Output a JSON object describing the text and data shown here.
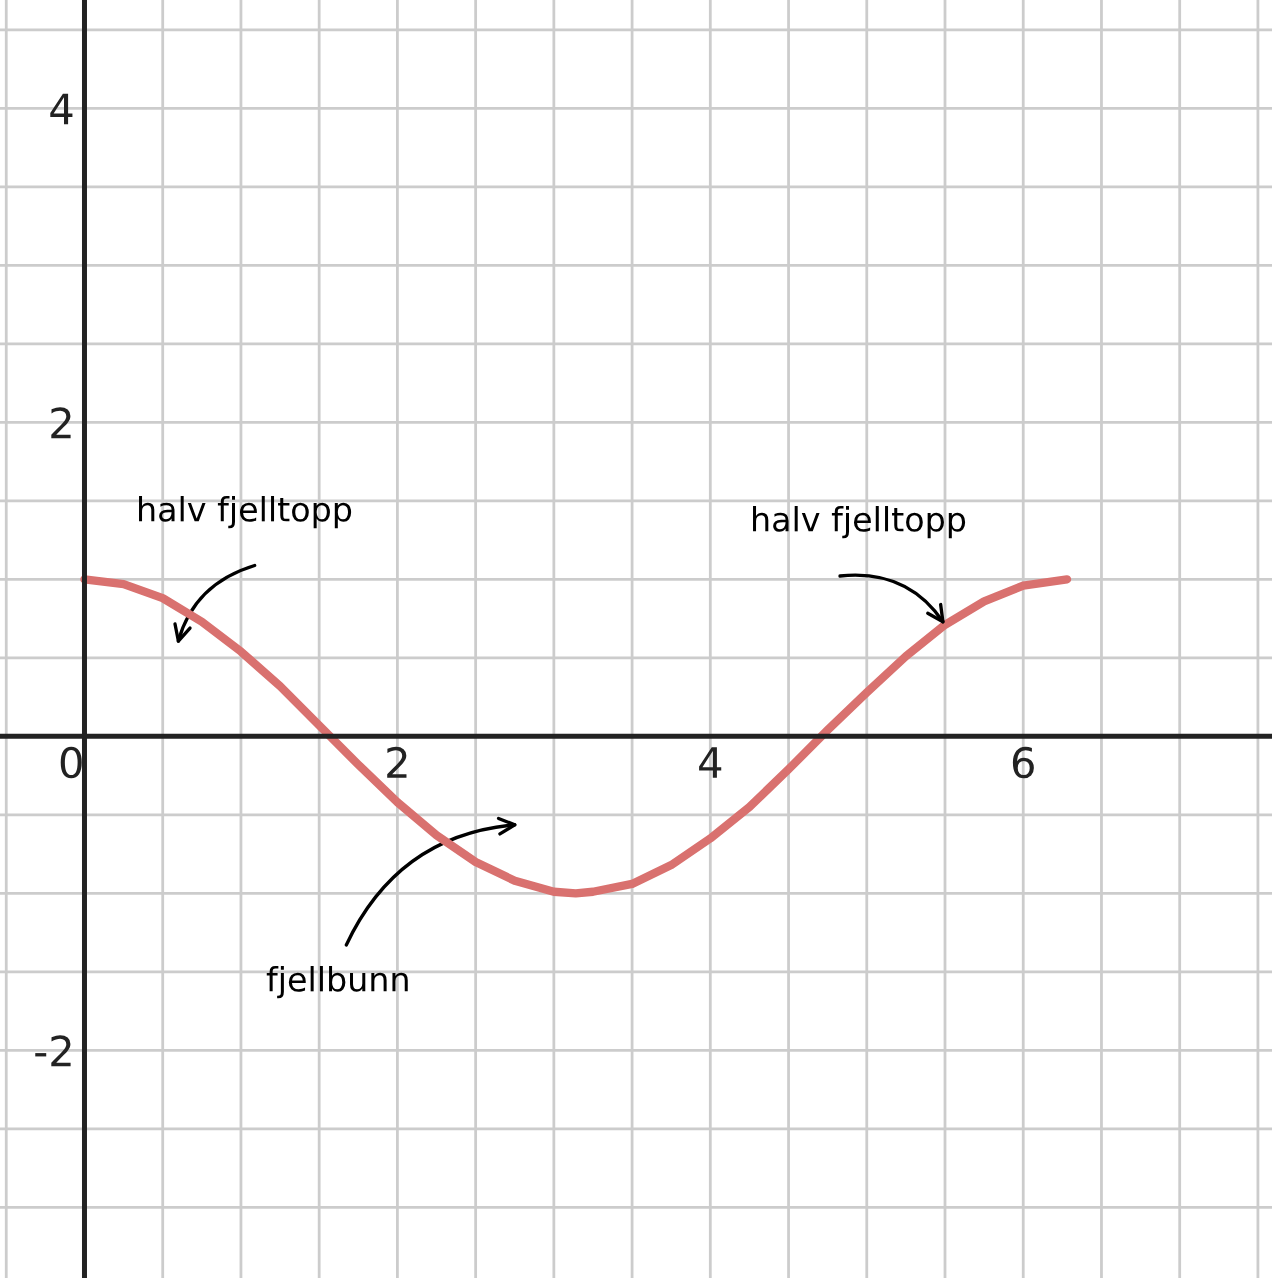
{
  "chart_data": {
    "type": "line",
    "x": [
      0,
      0.25,
      0.5,
      0.75,
      1,
      1.25,
      1.5,
      1.75,
      2,
      2.25,
      2.5,
      2.75,
      3,
      3.14,
      3.25,
      3.5,
      3.75,
      4,
      4.25,
      4.5,
      4.75,
      5,
      5.25,
      5.5,
      5.75,
      6,
      6.28
    ],
    "series": [
      {
        "color": "#d9716f",
        "values": [
          1,
          0.97,
          0.88,
          0.73,
          0.54,
          0.32,
          0.07,
          -0.18,
          -0.42,
          -0.63,
          -0.8,
          -0.92,
          -0.99,
          -1,
          -0.99,
          -0.94,
          -0.82,
          -0.65,
          -0.45,
          -0.21,
          0.04,
          0.28,
          0.51,
          0.71,
          0.86,
          0.96,
          1
        ]
      }
    ],
    "xlim": [
      -0.54,
      7.59
    ],
    "ylim": [
      -3.45,
      4.69
    ],
    "xticks": [
      {
        "value": -0.5,
        "label": null
      },
      0,
      {
        "value": 0.5,
        "label": null
      },
      {
        "value": 1,
        "label": null
      },
      {
        "value": 1.5,
        "label": null
      },
      2,
      {
        "value": 2.5,
        "label": null
      },
      {
        "value": 3,
        "label": null
      },
      {
        "value": 3.5,
        "label": null
      },
      4,
      {
        "value": 4.5,
        "label": null
      },
      {
        "value": 5,
        "label": null
      },
      {
        "value": 5.5,
        "label": null
      },
      6,
      {
        "value": 6.5,
        "label": null
      },
      {
        "value": 7,
        "label": null
      },
      {
        "value": 7.5,
        "label": null
      }
    ],
    "yticks": [
      {
        "value": -3,
        "label": null
      },
      {
        "value": -2.5,
        "label": null
      },
      -2,
      {
        "value": -1.5,
        "label": null
      },
      {
        "value": -1,
        "label": null
      },
      {
        "value": -0.5,
        "label": null
      },
      {
        "value": 0.5,
        "label": null
      },
      {
        "value": 1,
        "label": null
      },
      {
        "value": 1.5,
        "label": null
      },
      2,
      {
        "value": 2.5,
        "label": null
      },
      {
        "value": 3,
        "label": null
      },
      {
        "value": 3.5,
        "label": null
      },
      4,
      {
        "value": 4.5,
        "label": null
      }
    ],
    "grid": true,
    "marker": "none",
    "line_style": "solid",
    "annotations": [
      "halv fjelltopp",
      {
        "text": "halv fjelltopp",
        "x": 5.5,
        "y": 0.71
      },
      "fjellbunn"
    ]
  }
}
